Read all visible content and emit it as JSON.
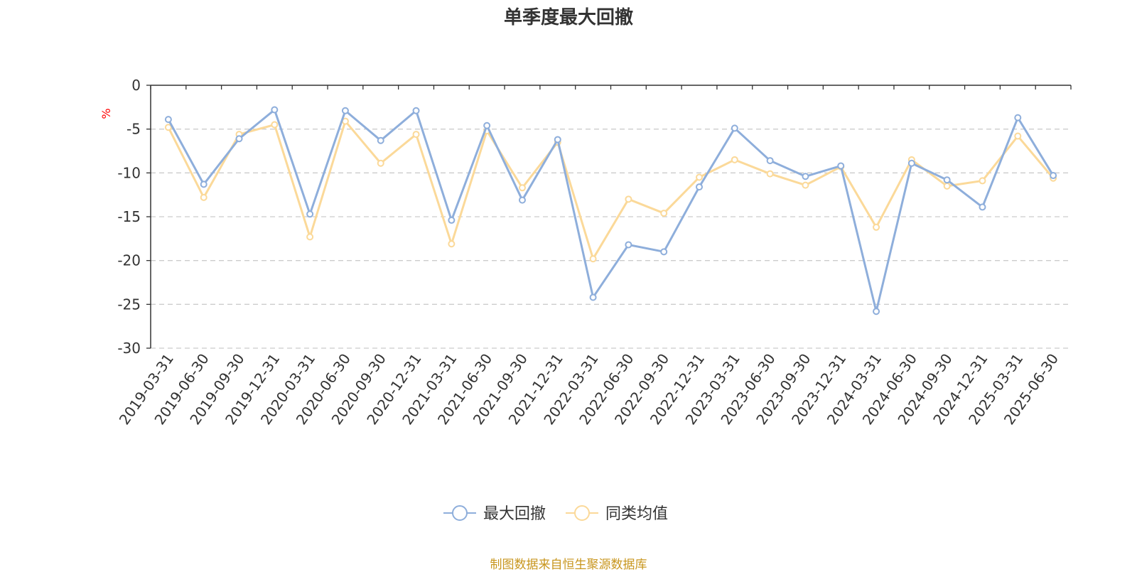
{
  "chart_data": {
    "type": "line",
    "title": "单季度最大回撤",
    "ylabel": "%",
    "xlabel": "",
    "ylim": [
      -30,
      0
    ],
    "yticks": [
      0,
      -5,
      -10,
      -15,
      -20,
      -25,
      -30
    ],
    "grid": true,
    "legend_position": "bottom-center",
    "categories": [
      "2019-03-31",
      "2019-06-30",
      "2019-09-30",
      "2019-12-31",
      "2020-03-31",
      "2020-06-30",
      "2020-09-30",
      "2020-12-31",
      "2021-03-31",
      "2021-06-30",
      "2021-09-30",
      "2021-12-31",
      "2022-03-31",
      "2022-06-30",
      "2022-09-30",
      "2022-12-31",
      "2023-03-31",
      "2023-06-30",
      "2023-09-30",
      "2023-12-31",
      "2024-03-31",
      "2024-06-30",
      "2024-09-30",
      "2024-12-31",
      "2025-03-31",
      "2025-06-30"
    ],
    "series": [
      {
        "name": "最大回撤",
        "color": "#8eaedb",
        "values": [
          -3.9,
          -11.3,
          -6.1,
          -2.8,
          -14.7,
          -2.9,
          -6.3,
          -2.9,
          -15.4,
          -4.6,
          -13.1,
          -6.2,
          -24.2,
          -18.2,
          -19.0,
          -11.6,
          -4.9,
          -8.6,
          -10.4,
          -9.2,
          -25.8,
          -8.9,
          -10.8,
          -13.9,
          -3.7,
          -10.3
        ]
      },
      {
        "name": "同类均值",
        "color": "#fbd999",
        "values": [
          -4.8,
          -12.8,
          -5.6,
          -4.5,
          -17.3,
          -4.1,
          -8.9,
          -5.6,
          -18.1,
          -5.2,
          -11.7,
          -6.5,
          -19.8,
          -13.0,
          -14.6,
          -10.5,
          -8.5,
          -10.1,
          -11.4,
          -9.3,
          -16.2,
          -8.5,
          -11.5,
          -10.9,
          -5.8,
          -10.6
        ]
      }
    ]
  },
  "source_note": "制图数据来自恒生聚源数据库",
  "colors": {
    "axis": "#333333",
    "grid": "#cccccc",
    "ylabel": "#ff0000",
    "tick_text": "#333333",
    "source_note": "#c8961e"
  }
}
